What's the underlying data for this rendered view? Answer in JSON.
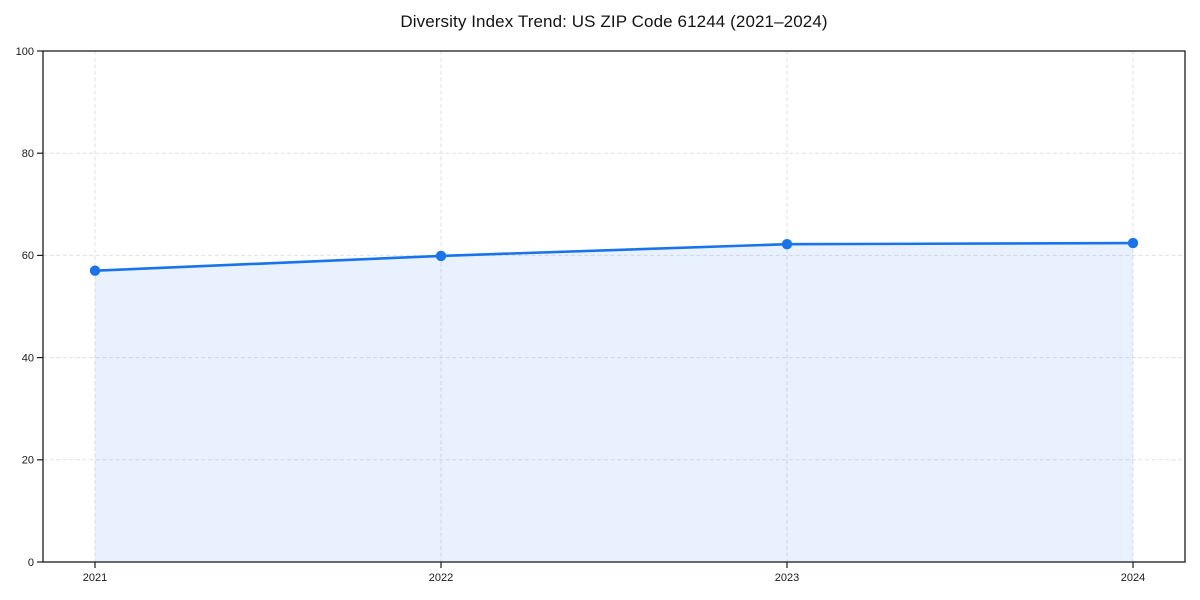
{
  "chart_data": {
    "type": "area",
    "title": "Diversity Index Trend: US ZIP Code 61244 (2021–2024)",
    "x": [
      2021,
      2022,
      2023,
      2024
    ],
    "series": [
      {
        "name": "Diversity Index",
        "values": [
          57.0,
          59.9,
          62.2,
          62.4
        ]
      }
    ],
    "xlabel": "",
    "ylabel": "",
    "ylim": [
      0,
      100
    ],
    "yticks": [
      0,
      20,
      40,
      60,
      80,
      100
    ],
    "xticks": [
      "2021",
      "2022",
      "2023",
      "2024"
    ],
    "grid": true,
    "grid_style": "dashed",
    "legend": "none",
    "colors": {
      "line": "#1a73e8",
      "marker": "#1a73e8",
      "fill": "#1a73e8",
      "fill_opacity": 0.1,
      "grid": "#e1e1e1",
      "axis": "#1c1c1c",
      "tick_label": "#1a1a1a",
      "background": "#ffffff"
    }
  }
}
